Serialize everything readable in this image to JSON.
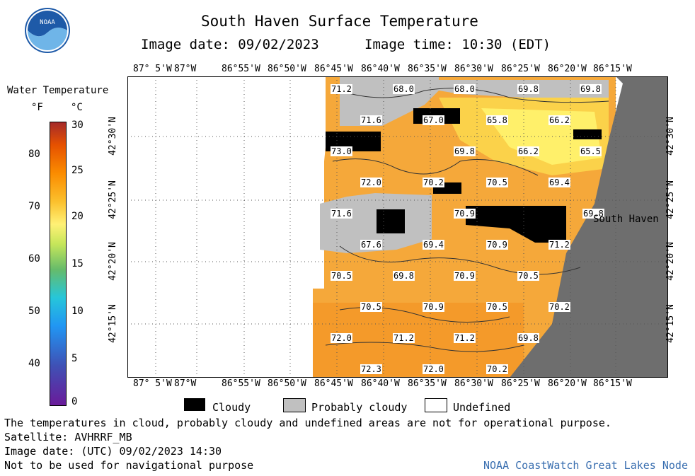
{
  "header": {
    "title": "South Haven Surface Temperature",
    "image_date": "Image date: 09/02/2023",
    "image_time": "Image time: 10:30 (EDT)"
  },
  "colorbar": {
    "title": "Water Temperature",
    "unit_f": "°F",
    "unit_c": "°C",
    "f_ticks": [
      "80",
      "70",
      "60",
      "50",
      "40"
    ],
    "c_ticks": [
      "30",
      "25",
      "20",
      "15",
      "10",
      "5",
      "0"
    ],
    "colors": [
      "#6a1b9a",
      "#3f51b5",
      "#2196f3",
      "#26c6da",
      "#66bb6a",
      "#c6e65a",
      "#fff176",
      "#fbc02d",
      "#fb8c00",
      "#e65100",
      "#a52a2a"
    ]
  },
  "map": {
    "lon_labels": [
      "87° 5'W",
      "87°W",
      "86°55'W",
      "86°50'W",
      "86°45'W",
      "86°40'W",
      "86°35'W",
      "86°30'W",
      "86°25'W",
      "86°20'W",
      "86°15'W"
    ],
    "lat_labels": [
      "42°30'N",
      "42°25'N",
      "42°20'N",
      "42°15'N"
    ],
    "city": "South Haven",
    "colors": {
      "water": "#f5a83a",
      "warm": "#f49a2a",
      "cool": "#fbd24a",
      "cold": "#fff06a",
      "cloud": "#000000",
      "prob_cloud": "#c0c0c0",
      "land": "#6e6e6e"
    },
    "temps": [
      "71.2",
      "68.0",
      "68.0",
      "69.8",
      "69.8",
      "71.6",
      "67.0",
      "65.8",
      "66.2",
      "73.0",
      "69.8",
      "66.2",
      "65.5",
      "72.0",
      "70.2",
      "70.5",
      "69.4",
      "71.6",
      "70.9",
      "69.8",
      "67.6",
      "69.4",
      "70.9",
      "71.2",
      "70.5",
      "69.8",
      "70.9",
      "70.5",
      "70.5",
      "70.9",
      "70.5",
      "70.2",
      "72.0",
      "71.2",
      "71.2",
      "69.8",
      "72.3",
      "72.0",
      "70.2"
    ]
  },
  "legend": {
    "cloudy": "Cloudy",
    "prob_cloudy": "Probably cloudy",
    "undefined": "Undefined"
  },
  "footer": {
    "note": "The temperatures in cloud, probably cloudy and undefined areas are not for operational purpose.",
    "satellite": "Satellite: AVHRRF_MB",
    "utc_date": "Image date: (UTC) 09/02/2023  14:30",
    "nav": "Not to be used for navigational purpose",
    "credit": "NOAA CoastWatch Great Lakes Node"
  },
  "logo": {
    "text": "NOAA"
  }
}
